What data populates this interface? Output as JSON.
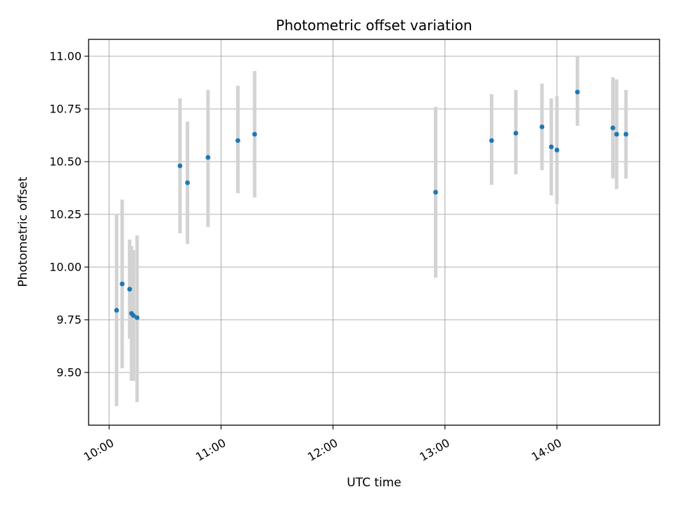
{
  "chart_data": {
    "type": "scatter",
    "title": "Photometric offset variation",
    "xlabel": "UTC time",
    "ylabel": "Photometric offset",
    "x_axis": "time",
    "x_ticks": [
      "10:00",
      "11:00",
      "12:00",
      "13:00",
      "14:00"
    ],
    "y_ticks": [
      "9.50",
      "9.75",
      "10.00",
      "10.25",
      "10.50",
      "10.75",
      "11.00"
    ],
    "ylim": [
      9.25,
      11.08
    ],
    "xlim": [
      "09:49",
      "14:55"
    ],
    "grid": true,
    "colors": {
      "point": "#1f77b4",
      "error_bar": "#d3d3d3",
      "grid": "#b0b0b0"
    },
    "points": [
      {
        "x": "10:04",
        "y": 9.795,
        "low": 9.34,
        "high": 10.25
      },
      {
        "x": "10:07",
        "y": 9.92,
        "low": 9.52,
        "high": 10.32
      },
      {
        "x": "10:11",
        "y": 9.895,
        "low": 9.66,
        "high": 10.13
      },
      {
        "x": "10:12",
        "y": 9.78,
        "low": 9.46,
        "high": 10.1
      },
      {
        "x": "10:13",
        "y": 9.77,
        "low": 9.46,
        "high": 10.08
      },
      {
        "x": "10:15",
        "y": 9.76,
        "low": 9.36,
        "high": 10.15
      },
      {
        "x": "10:38",
        "y": 10.48,
        "low": 10.16,
        "high": 10.8
      },
      {
        "x": "10:42",
        "y": 10.4,
        "low": 10.11,
        "high": 10.69
      },
      {
        "x": "10:53",
        "y": 10.52,
        "low": 10.19,
        "high": 10.84
      },
      {
        "x": "11:09",
        "y": 10.6,
        "low": 10.35,
        "high": 10.86
      },
      {
        "x": "11:18",
        "y": 10.63,
        "low": 10.33,
        "high": 10.93
      },
      {
        "x": "12:55",
        "y": 10.355,
        "low": 9.95,
        "high": 10.76
      },
      {
        "x": "13:25",
        "y": 10.6,
        "low": 10.39,
        "high": 10.82
      },
      {
        "x": "13:38",
        "y": 10.635,
        "low": 10.44,
        "high": 10.84
      },
      {
        "x": "13:52",
        "y": 10.665,
        "low": 10.46,
        "high": 10.87
      },
      {
        "x": "13:57",
        "y": 10.57,
        "low": 10.34,
        "high": 10.8
      },
      {
        "x": "14:00",
        "y": 10.555,
        "low": 10.3,
        "high": 10.81
      },
      {
        "x": "14:11",
        "y": 10.83,
        "low": 10.67,
        "high": 11.0
      },
      {
        "x": "14:30",
        "y": 10.66,
        "low": 10.42,
        "high": 10.9
      },
      {
        "x": "14:32",
        "y": 10.63,
        "low": 10.37,
        "high": 10.89
      },
      {
        "x": "14:37",
        "y": 10.63,
        "low": 10.42,
        "high": 10.84
      }
    ]
  }
}
